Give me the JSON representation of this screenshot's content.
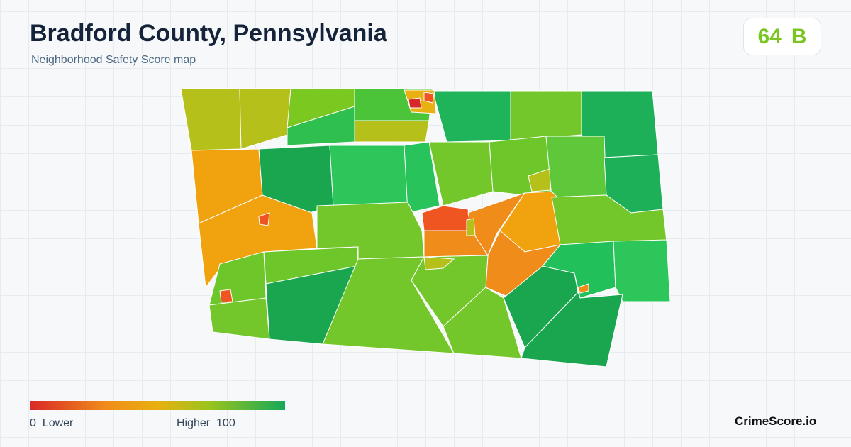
{
  "header": {
    "title": "Bradford County, Pennsylvania",
    "subtitle": "Neighborhood Safety Score map"
  },
  "score": {
    "value": 64,
    "grade": "B"
  },
  "legend": {
    "min": 0,
    "min_label": "Lower",
    "max_label": "Higher",
    "max": 100
  },
  "brand": "CrimeScore.io"
}
